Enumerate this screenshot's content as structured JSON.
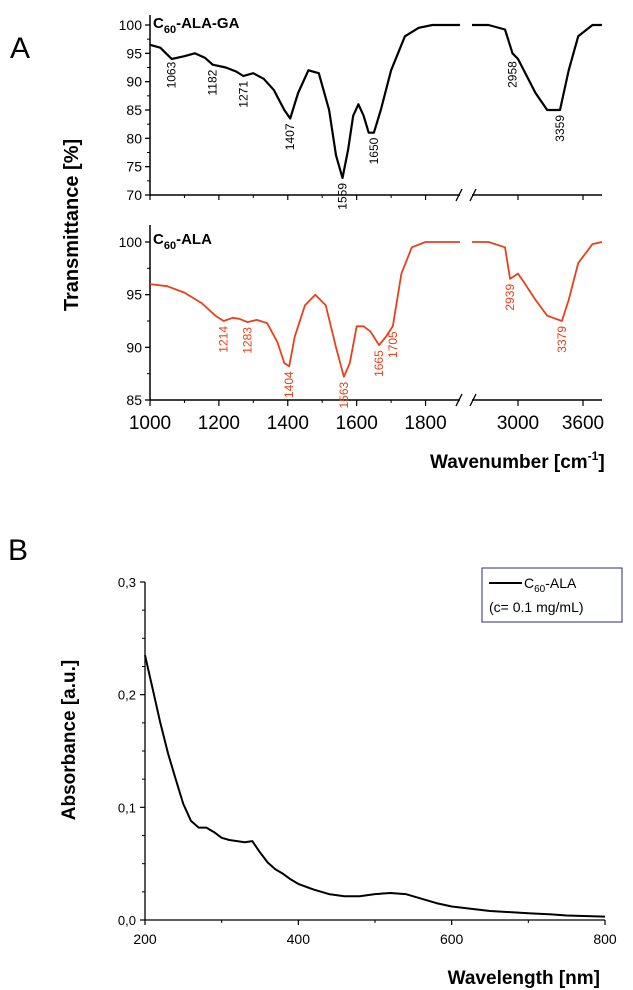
{
  "panel_a": {
    "label": "A",
    "xlabel": "Wavenumber [cm",
    "xlabel_sup": "-1",
    "xlabel_close": "]",
    "ylabel": "Transmittance [%]",
    "xticks_left": [
      "1000",
      "1200",
      "1400",
      "1600",
      "1800"
    ],
    "xticks_right": [
      "3000",
      "3600"
    ]
  },
  "panel_b": {
    "label": "B"
  },
  "colors": {
    "black_series": "#000000",
    "red_series": "#e8401c",
    "legend_border": "#2e2e6e"
  },
  "chart_data": [
    {
      "type": "line",
      "title": "C60-ALA-GA",
      "title_parts": {
        "main": "C",
        "sub": "60",
        "rest": "-ALA-GA"
      },
      "ylim": [
        70,
        100
      ],
      "yticks": [
        "70",
        "75",
        "80",
        "85",
        "90",
        "95",
        "100"
      ],
      "x_break": [
        1900,
        2700
      ],
      "series": [
        {
          "name": "C60-ALA-GA",
          "x": [
            1000,
            1030,
            1063,
            1100,
            1130,
            1160,
            1182,
            1220,
            1250,
            1271,
            1300,
            1330,
            1360,
            1390,
            1407,
            1430,
            1460,
            1490,
            1520,
            1540,
            1559,
            1575,
            1590,
            1605,
            1620,
            1635,
            1650,
            1670,
            1700,
            1740,
            1780,
            1820,
            1850,
            1900,
            2700,
            2800,
            2900,
            2958,
            3000,
            3050,
            3150,
            3250,
            3359,
            3450,
            3550,
            3650,
            3700
          ],
          "y": [
            96.5,
            96,
            94,
            94.5,
            95,
            94.2,
            93,
            92.5,
            91.8,
            91,
            91.5,
            90.5,
            88.5,
            85,
            83.5,
            88,
            92,
            91.5,
            85,
            77,
            73,
            78,
            84,
            86,
            84,
            81,
            81,
            85,
            92,
            98,
            99.5,
            100,
            100,
            100,
            100,
            100,
            99.2,
            95,
            94,
            92,
            88,
            85,
            85,
            92,
            98,
            100,
            100
          ]
        }
      ],
      "annotations": [
        "1063",
        "1182",
        "1271",
        "1407",
        "1559",
        "1650",
        "2958",
        "3359"
      ]
    },
    {
      "type": "line",
      "title": "C60-ALA",
      "title_parts": {
        "main": "C",
        "sub": "60",
        "rest": "-ALA"
      },
      "ylim": [
        85,
        101
      ],
      "yticks": [
        "85",
        "90",
        "95",
        "100"
      ],
      "x_break": [
        1900,
        2700
      ],
      "series": [
        {
          "name": "C60-ALA",
          "x": [
            1000,
            1050,
            1100,
            1150,
            1190,
            1214,
            1240,
            1260,
            1283,
            1310,
            1340,
            1370,
            1390,
            1404,
            1420,
            1450,
            1480,
            1510,
            1540,
            1563,
            1580,
            1600,
            1620,
            1640,
            1665,
            1685,
            1705,
            1730,
            1760,
            1800,
            1850,
            1900,
            2700,
            2800,
            2900,
            2939,
            3000,
            3050,
            3150,
            3250,
            3379,
            3450,
            3550,
            3650,
            3700
          ],
          "y": [
            96,
            95.8,
            95.2,
            94.2,
            93,
            92.5,
            92.8,
            92.7,
            92.4,
            92.6,
            92.3,
            90.5,
            88.5,
            88.2,
            91,
            94,
            95,
            94,
            90,
            87.2,
            88.5,
            92,
            92,
            91.5,
            90.2,
            91,
            92,
            97,
            99.5,
            100,
            100,
            100,
            100,
            100,
            99.5,
            96.5,
            97,
            96.2,
            94.5,
            93,
            92.5,
            94.5,
            98,
            99.8,
            100
          ]
        }
      ],
      "annotations": [
        "1214",
        "1283",
        "1404",
        "1563",
        "1665",
        "1705",
        "2939",
        "3379"
      ]
    },
    {
      "type": "line",
      "xlabel": "Wavelength [nm]",
      "ylabel": "Absorbance [a.u.]",
      "xlim": [
        200,
        800
      ],
      "ylim": [
        0,
        0.3
      ],
      "xticks": [
        "200",
        "400",
        "600",
        "800"
      ],
      "yticks": [
        "0,0",
        "0,1",
        "0,2",
        "0,3"
      ],
      "legend": {
        "name_main": "C",
        "name_sub": "60",
        "name_rest": "-ALA",
        "note": "(c= 0.1 mg/mL)",
        "placement": "top-right"
      },
      "series": [
        {
          "name": "C60-ALA",
          "x": [
            200,
            210,
            220,
            230,
            240,
            250,
            260,
            270,
            280,
            290,
            300,
            310,
            320,
            330,
            340,
            350,
            360,
            370,
            380,
            390,
            400,
            420,
            440,
            460,
            480,
            500,
            520,
            540,
            560,
            580,
            600,
            650,
            700,
            730,
            750,
            800
          ],
          "y": [
            0.235,
            0.205,
            0.175,
            0.148,
            0.125,
            0.103,
            0.088,
            0.082,
            0.082,
            0.078,
            0.073,
            0.071,
            0.07,
            0.069,
            0.07,
            0.06,
            0.051,
            0.045,
            0.041,
            0.036,
            0.032,
            0.027,
            0.023,
            0.021,
            0.021,
            0.023,
            0.024,
            0.023,
            0.019,
            0.015,
            0.012,
            0.008,
            0.006,
            0.005,
            0.004,
            0.003
          ]
        }
      ]
    }
  ]
}
